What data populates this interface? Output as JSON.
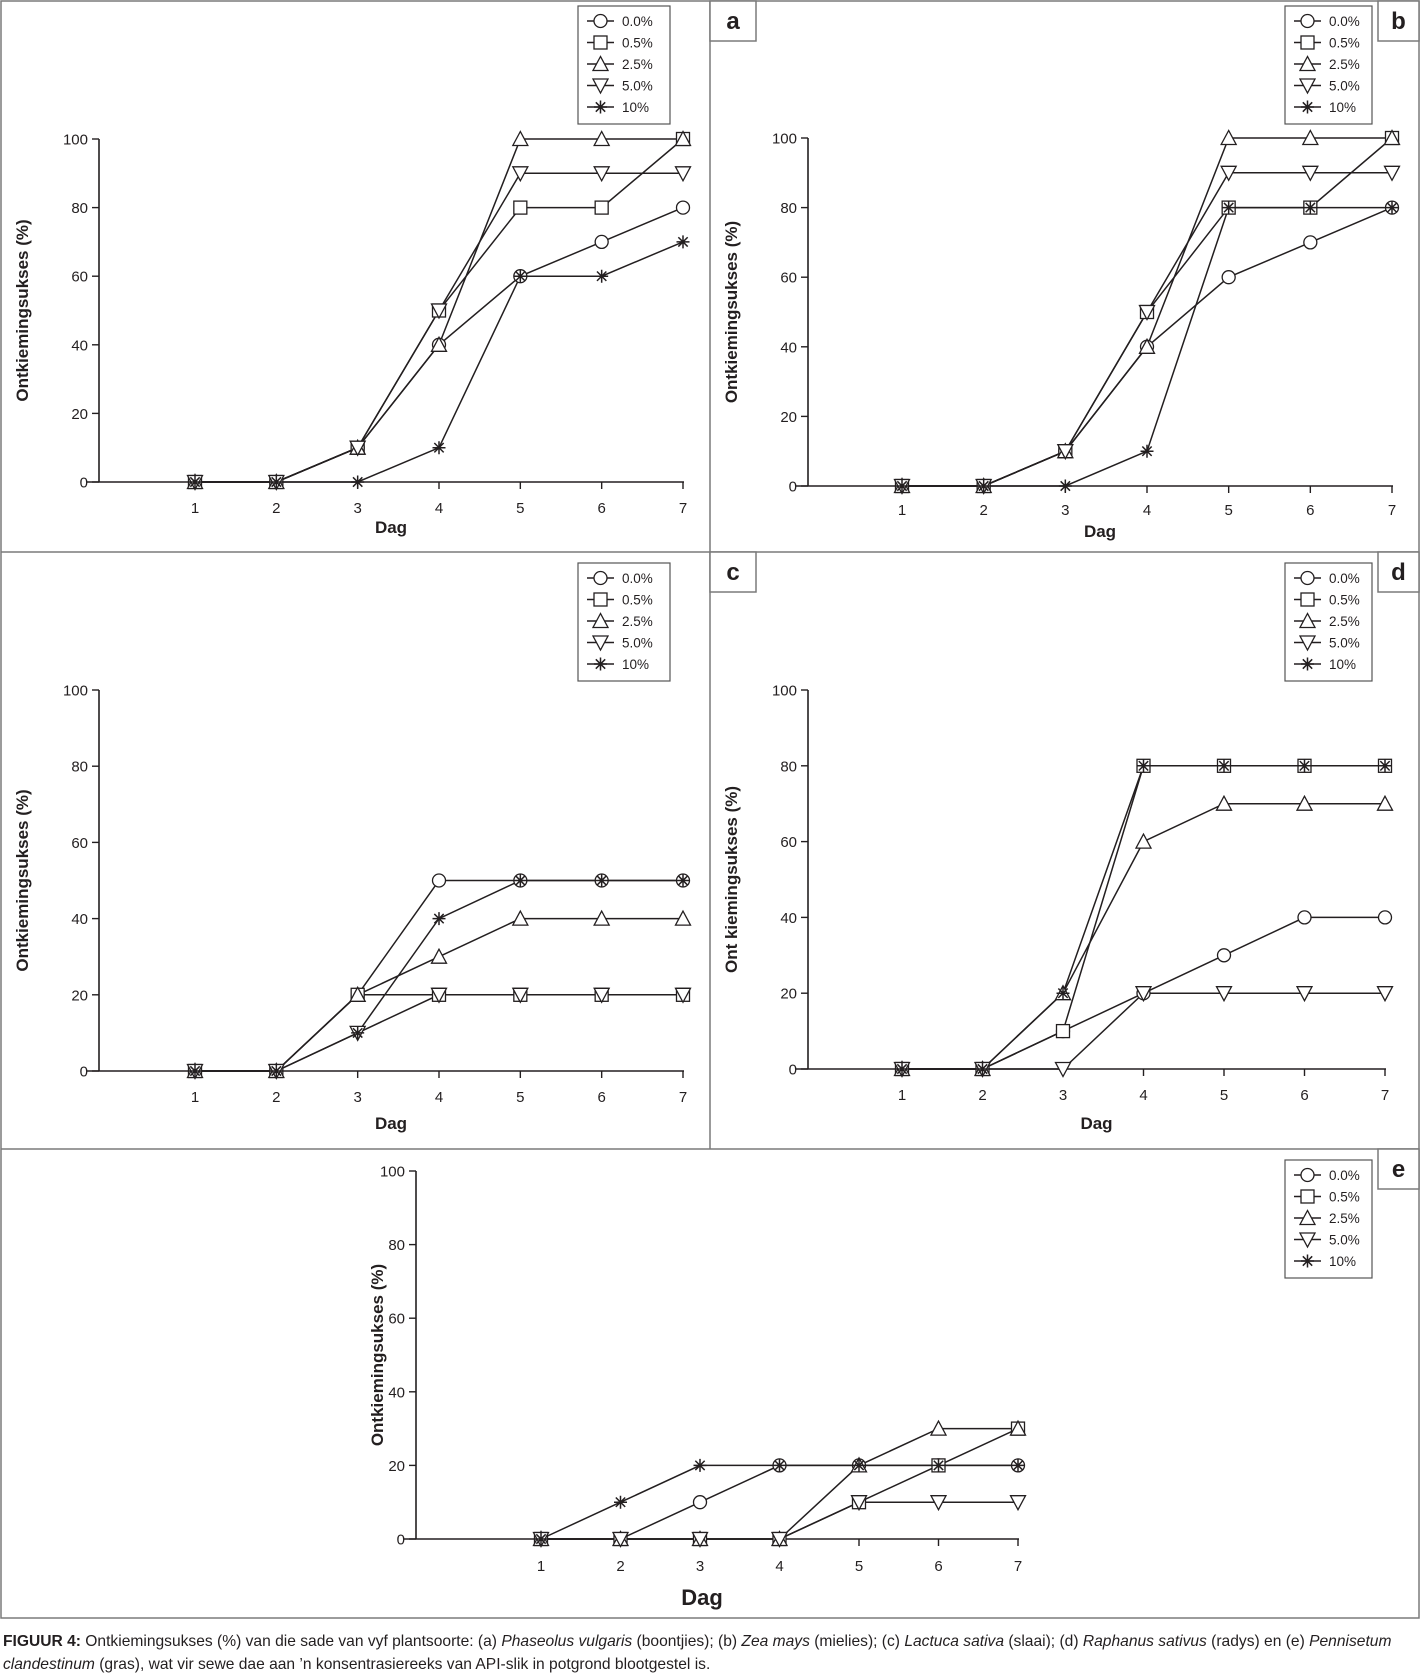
{
  "figure": {
    "caption_label": "FIGUUR 4:",
    "caption_parts": [
      {
        "t": " Ontkiemingsukses (%) van die sade van vyf plantsoorte: (a) ",
        "i": false
      },
      {
        "t": "Phaseolus vulgaris",
        "i": true
      },
      {
        "t": " (boontjies); (b) ",
        "i": false
      },
      {
        "t": "Zea mays",
        "i": true
      },
      {
        "t": " (mielies); (c) ",
        "i": false
      },
      {
        "t": "Lactuca sativa",
        "i": true
      },
      {
        "t": " (slaai); (d) ",
        "i": false
      },
      {
        "t": "Raphanus sativus",
        "i": true
      },
      {
        "t": " (radys) en (e) ",
        "i": false
      },
      {
        "t": "Pennisetum clandestinum",
        "i": true
      },
      {
        "t": " (gras), wat vir sewe dae aan ’n konsentrasiereeks van API-slik in potgrond blootgestel is.",
        "i": false
      }
    ]
  },
  "chart_data": [
    {
      "panel": "a",
      "type": "line",
      "xlabel": "Dag",
      "ylabel": "Ontkiemingsukses (%)",
      "x": [
        1,
        2,
        3,
        4,
        5,
        6,
        7
      ],
      "xticks": [
        "1",
        "2",
        "3",
        "4",
        "5",
        "6",
        "7"
      ],
      "yticks": [
        "0",
        "20",
        "40",
        "60",
        "80",
        "100"
      ],
      "ylim": [
        0,
        100
      ],
      "grid": false,
      "legend_position": "top-right",
      "series": [
        {
          "name": "0.0%",
          "marker": "circle",
          "values": [
            0,
            0,
            10,
            40,
            60,
            70,
            80
          ]
        },
        {
          "name": "0.5%",
          "marker": "square",
          "values": [
            0,
            0,
            10,
            50,
            80,
            80,
            100
          ]
        },
        {
          "name": "2.5%",
          "marker": "triangle-up",
          "values": [
            0,
            0,
            10,
            40,
            100,
            100,
            100
          ]
        },
        {
          "name": "5.0%",
          "marker": "triangle-down",
          "values": [
            0,
            0,
            10,
            50,
            90,
            90,
            90
          ]
        },
        {
          "name": "10%",
          "marker": "asterisk",
          "values": [
            0,
            0,
            0,
            10,
            60,
            60,
            70
          ]
        }
      ]
    },
    {
      "panel": "b",
      "type": "line",
      "xlabel": "Dag",
      "ylabel": "Ontkiemingsukses (%)",
      "x": [
        1,
        2,
        3,
        4,
        5,
        6,
        7
      ],
      "xticks": [
        "1",
        "2",
        "3",
        "4",
        "5",
        "6",
        "7"
      ],
      "yticks": [
        "0",
        "20",
        "40",
        "60",
        "80",
        "100"
      ],
      "ylim": [
        0,
        100
      ],
      "grid": false,
      "legend_position": "top-right",
      "series": [
        {
          "name": "0.0%",
          "marker": "circle",
          "values": [
            0,
            0,
            10,
            40,
            60,
            70,
            80
          ]
        },
        {
          "name": "0.5%",
          "marker": "square",
          "values": [
            0,
            0,
            10,
            50,
            80,
            80,
            100
          ]
        },
        {
          "name": "2.5%",
          "marker": "triangle-up",
          "values": [
            0,
            0,
            10,
            40,
            100,
            100,
            100
          ]
        },
        {
          "name": "5.0%",
          "marker": "triangle-down",
          "values": [
            0,
            0,
            10,
            50,
            90,
            90,
            90
          ]
        },
        {
          "name": "10%",
          "marker": "asterisk",
          "values": [
            0,
            0,
            0,
            10,
            80,
            80,
            80
          ]
        }
      ]
    },
    {
      "panel": "c",
      "type": "line",
      "xlabel": "Dag",
      "ylabel": "Ontkiemingsukses (%)",
      "x": [
        1,
        2,
        3,
        4,
        5,
        6,
        7
      ],
      "xticks": [
        "1",
        "2",
        "3",
        "4",
        "5",
        "6",
        "7"
      ],
      "yticks": [
        "0",
        "20",
        "40",
        "60",
        "80",
        "100"
      ],
      "ylim": [
        0,
        100
      ],
      "grid": false,
      "legend_position": "top-right",
      "series": [
        {
          "name": "0.0%",
          "marker": "circle",
          "values": [
            0,
            0,
            20,
            50,
            50,
            50,
            50
          ]
        },
        {
          "name": "0.5%",
          "marker": "square",
          "values": [
            0,
            0,
            20,
            20,
            20,
            20,
            20
          ]
        },
        {
          "name": "2.5%",
          "marker": "triangle-up",
          "values": [
            0,
            0,
            20,
            30,
            40,
            40,
            40
          ]
        },
        {
          "name": "5.0%",
          "marker": "triangle-down",
          "values": [
            0,
            0,
            10,
            20,
            20,
            20,
            20
          ]
        },
        {
          "name": "10%",
          "marker": "asterisk",
          "values": [
            0,
            0,
            10,
            40,
            50,
            50,
            50
          ]
        }
      ]
    },
    {
      "panel": "d",
      "type": "line",
      "xlabel": "Dag",
      "ylabel": "Ont kiemingsukses (%)",
      "x": [
        1,
        2,
        3,
        4,
        5,
        6,
        7
      ],
      "xticks": [
        "1",
        "2",
        "3",
        "4",
        "5",
        "6",
        "7"
      ],
      "yticks": [
        "0",
        "20",
        "40",
        "60",
        "80",
        "100"
      ],
      "ylim": [
        0,
        100
      ],
      "grid": false,
      "legend_position": "top-right",
      "series": [
        {
          "name": "0.0%",
          "marker": "circle",
          "values": [
            0,
            0,
            10,
            20,
            30,
            40,
            40
          ]
        },
        {
          "name": "0.5%",
          "marker": "square",
          "values": [
            0,
            0,
            10,
            80,
            80,
            80,
            80
          ]
        },
        {
          "name": "2.5%",
          "marker": "triangle-up",
          "values": [
            0,
            0,
            20,
            60,
            70,
            70,
            70
          ]
        },
        {
          "name": "5.0%",
          "marker": "triangle-down",
          "values": [
            0,
            0,
            0,
            20,
            20,
            20,
            20
          ]
        },
        {
          "name": "10%",
          "marker": "asterisk",
          "values": [
            0,
            0,
            20,
            80,
            80,
            80,
            80
          ]
        }
      ]
    },
    {
      "panel": "e",
      "type": "line",
      "xlabel": "Dag",
      "ylabel": "Ontkiemingsukses (%)",
      "x": [
        1,
        2,
        3,
        4,
        5,
        6,
        7
      ],
      "xticks": [
        "1",
        "2",
        "3",
        "4",
        "5",
        "6",
        "7"
      ],
      "yticks": [
        "0",
        "20",
        "40",
        "60",
        "80",
        "100"
      ],
      "ylim": [
        0,
        100
      ],
      "grid": false,
      "legend_position": "top-right",
      "series": [
        {
          "name": "0.0%",
          "marker": "circle",
          "values": [
            0,
            0,
            10,
            20,
            20,
            20,
            20
          ]
        },
        {
          "name": "0.5%",
          "marker": "square",
          "values": [
            0,
            0,
            0,
            0,
            10,
            20,
            30
          ]
        },
        {
          "name": "2.5%",
          "marker": "triangle-up",
          "values": [
            0,
            0,
            0,
            0,
            20,
            30,
            30
          ]
        },
        {
          "name": "5.0%",
          "marker": "triangle-down",
          "values": [
            0,
            0,
            0,
            0,
            10,
            10,
            10
          ]
        },
        {
          "name": "10%",
          "marker": "asterisk",
          "values": [
            0,
            10,
            20,
            20,
            20,
            20,
            20
          ]
        }
      ]
    }
  ]
}
